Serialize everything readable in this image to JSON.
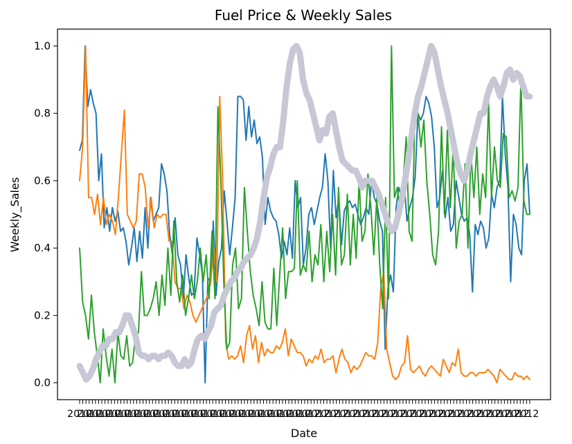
{
  "chart_data": {
    "type": "line",
    "title": "Fuel Price & Weekly Sales",
    "xlabel": "Date",
    "ylabel": "Weekly_Sales",
    "ylim": [
      -0.05,
      1.05
    ],
    "yticks": [
      0.0,
      0.2,
      0.4,
      0.6,
      0.8,
      1.0
    ],
    "ytick_labels": [
      "0.0",
      "0.2",
      "0.4",
      "0.6",
      "0.8",
      "1.0"
    ],
    "grid": false,
    "x_tick_count": 143,
    "x_tick_label_start": "2010",
    "x_tick_label_end": "2012",
    "series": [
      {
        "color": "#1f77b4",
        "width": 2,
        "values": [
          0.69,
          0.72,
          1.0,
          0.82,
          0.87,
          0.83,
          0.8,
          0.6,
          0.68,
          0.46,
          0.52,
          0.45,
          0.52,
          0.48,
          0.51,
          0.45,
          0.46,
          0.42,
          0.35,
          0.4,
          0.46,
          0.36,
          0.45,
          0.37,
          0.52,
          0.4,
          0.55,
          0.48,
          0.5,
          0.52,
          0.65,
          0.62,
          0.57,
          0.44,
          0.38,
          0.49,
          0.38,
          0.35,
          0.25,
          0.38,
          0.31,
          0.26,
          0.27,
          0.43,
          0.38,
          0.32,
          0.0,
          0.31,
          0.3,
          0.48,
          0.26,
          0.36,
          0.4,
          0.57,
          0.48,
          0.38,
          0.46,
          0.55,
          0.85,
          0.85,
          0.84,
          0.72,
          0.82,
          0.73,
          0.78,
          0.71,
          0.73,
          0.67,
          0.47,
          0.55,
          0.51,
          0.49,
          0.48,
          0.44,
          0.37,
          0.42,
          0.38,
          0.46,
          0.37,
          0.6,
          0.52,
          0.55,
          0.35,
          0.4,
          0.5,
          0.52,
          0.47,
          0.51,
          0.55,
          0.58,
          0.68,
          0.6,
          0.4,
          0.63,
          0.49,
          0.55,
          0.41,
          0.51,
          0.53,
          0.54,
          0.52,
          0.53,
          0.5,
          0.47,
          0.49,
          0.52,
          0.5,
          0.6,
          0.55,
          0.53,
          0.48,
          0.45,
          0.1,
          0.28,
          0.32,
          0.27,
          0.52,
          0.58,
          0.55,
          0.59,
          0.48,
          0.52,
          0.55,
          0.61,
          0.8,
          0.78,
          0.8,
          0.85,
          0.83,
          0.79,
          0.7,
          0.52,
          0.55,
          0.63,
          0.49,
          0.55,
          0.45,
          0.47,
          0.6,
          0.55,
          0.5,
          0.48,
          0.49,
          0.44,
          0.27,
          0.47,
          0.44,
          0.48,
          0.46,
          0.4,
          0.43,
          0.56,
          0.52,
          0.58,
          0.6,
          0.85,
          0.68,
          0.58,
          0.3,
          0.5,
          0.47,
          0.4,
          0.38,
          0.6,
          0.65,
          0.5
        ]
      },
      {
        "color": "#ff7f0e",
        "width": 2,
        "values": [
          0.6,
          0.7,
          1.0,
          0.55,
          0.55,
          0.5,
          0.56,
          0.47,
          0.55,
          0.47,
          0.5,
          0.48,
          0.44,
          0.55,
          0.68,
          0.81,
          0.5,
          0.48,
          0.46,
          0.48,
          0.62,
          0.62,
          0.58,
          0.46,
          0.55,
          0.46,
          0.5,
          0.49,
          0.5,
          0.5,
          0.42,
          0.42,
          0.3,
          0.28,
          0.28,
          0.22,
          0.26,
          0.24,
          0.2,
          0.18,
          0.2,
          0.22,
          0.24,
          0.26,
          0.3,
          0.4,
          0.3,
          0.85,
          0.6,
          0.12,
          0.07,
          0.08,
          0.07,
          0.08,
          0.11,
          0.06,
          0.14,
          0.17,
          0.1,
          0.14,
          0.06,
          0.12,
          0.08,
          0.1,
          0.09,
          0.09,
          0.11,
          0.1,
          0.12,
          0.16,
          0.08,
          0.13,
          0.11,
          0.09,
          0.09,
          0.08,
          0.05,
          0.07,
          0.06,
          0.08,
          0.07,
          0.1,
          0.06,
          0.07,
          0.07,
          0.08,
          0.03,
          0.07,
          0.1,
          0.07,
          0.06,
          0.03,
          0.05,
          0.04,
          0.05,
          0.07,
          0.09,
          0.08,
          0.08,
          0.07,
          0.12,
          0.28,
          0.33,
          0.1,
          0.06,
          0.02,
          0.01,
          0.02,
          0.05,
          0.06,
          0.14,
          0.04,
          0.03,
          0.04,
          0.05,
          0.03,
          0.02,
          0.04,
          0.05,
          0.04,
          0.03,
          0.02,
          0.07,
          0.05,
          0.03,
          0.06,
          0.05,
          0.1,
          0.03,
          0.02,
          0.02,
          0.03,
          0.03,
          0.02,
          0.03,
          0.03,
          0.03,
          0.04,
          0.03,
          0.02,
          0.0,
          0.04,
          0.03,
          0.02,
          0.01,
          0.01,
          0.03,
          0.02,
          0.02,
          0.01,
          0.02,
          0.01
        ]
      },
      {
        "color": "#2ca02c",
        "width": 2,
        "values": [
          0.4,
          0.24,
          0.2,
          0.13,
          0.26,
          0.15,
          0.08,
          0.0,
          0.16,
          0.08,
          0.02,
          0.1,
          0.0,
          0.15,
          0.08,
          0.07,
          0.14,
          0.05,
          0.06,
          0.14,
          0.15,
          0.33,
          0.2,
          0.2,
          0.22,
          0.25,
          0.3,
          0.2,
          0.32,
          0.23,
          0.4,
          0.26,
          0.48,
          0.3,
          0.24,
          0.32,
          0.2,
          0.25,
          0.32,
          0.25,
          0.3,
          0.4,
          0.3,
          0.38,
          0.25,
          0.45,
          0.25,
          0.82,
          0.6,
          0.3,
          0.1,
          0.12,
          0.35,
          0.4,
          0.22,
          0.25,
          0.58,
          0.45,
          0.33,
          0.26,
          0.22,
          0.17,
          0.3,
          0.18,
          0.16,
          0.16,
          0.34,
          0.17,
          0.32,
          0.46,
          0.25,
          0.33,
          0.33,
          0.34,
          0.6,
          0.32,
          0.35,
          0.33,
          0.45,
          0.3,
          0.38,
          0.35,
          0.47,
          0.3,
          0.45,
          0.33,
          0.5,
          0.32,
          0.58,
          0.35,
          0.38,
          0.56,
          0.35,
          0.5,
          0.37,
          0.6,
          0.42,
          0.45,
          0.62,
          0.52,
          0.38,
          0.55,
          0.35,
          0.22,
          0.55,
          0.25,
          1.0,
          0.55,
          0.58,
          0.5,
          0.6,
          0.73,
          0.45,
          0.42,
          0.82,
          0.8,
          0.7,
          0.78,
          0.6,
          0.5,
          0.38,
          0.35,
          0.45,
          0.76,
          0.5,
          0.75,
          0.52,
          0.7,
          0.4,
          0.48,
          0.5,
          0.65,
          0.4,
          0.68,
          0.55,
          0.7,
          0.5,
          0.62,
          0.55,
          0.83,
          0.55,
          0.7,
          0.6,
          0.58,
          0.74,
          0.73,
          0.55,
          0.57,
          0.54,
          0.58,
          0.9,
          0.54,
          0.5,
          0.5
        ]
      },
      {
        "color": "#c7c7d6",
        "width": 9,
        "values": [
          0.05,
          0.03,
          0.01,
          0.02,
          0.04,
          0.07,
          0.09,
          0.11,
          0.11,
          0.13,
          0.13,
          0.15,
          0.15,
          0.17,
          0.2,
          0.2,
          0.17,
          0.14,
          0.09,
          0.08,
          0.08,
          0.07,
          0.08,
          0.08,
          0.07,
          0.08,
          0.08,
          0.09,
          0.08,
          0.06,
          0.05,
          0.05,
          0.07,
          0.05,
          0.06,
          0.1,
          0.13,
          0.14,
          0.13,
          0.15,
          0.17,
          0.21,
          0.22,
          0.23,
          0.26,
          0.28,
          0.3,
          0.31,
          0.33,
          0.34,
          0.36,
          0.37,
          0.38,
          0.4,
          0.43,
          0.48,
          0.55,
          0.61,
          0.64,
          0.68,
          0.7,
          0.7,
          0.78,
          0.88,
          0.95,
          0.99,
          1.0,
          0.98,
          0.9,
          0.86,
          0.84,
          0.8,
          0.76,
          0.72,
          0.75,
          0.74,
          0.79,
          0.8,
          0.75,
          0.7,
          0.66,
          0.65,
          0.64,
          0.63,
          0.63,
          0.61,
          0.58,
          0.6,
          0.6,
          0.6,
          0.58,
          0.56,
          0.53,
          0.5,
          0.47,
          0.45,
          0.46,
          0.5,
          0.54,
          0.6,
          0.66,
          0.73,
          0.8,
          0.85,
          0.88,
          0.92,
          0.96,
          1.0,
          0.98,
          0.93,
          0.88,
          0.84,
          0.8,
          0.75,
          0.7,
          0.65,
          0.62,
          0.6,
          0.63,
          0.68,
          0.72,
          0.76,
          0.8,
          0.8,
          0.85,
          0.88,
          0.9,
          0.88,
          0.85,
          0.88,
          0.92,
          0.93,
          0.9,
          0.92,
          0.91,
          0.88,
          0.85,
          0.85
        ]
      }
    ]
  }
}
